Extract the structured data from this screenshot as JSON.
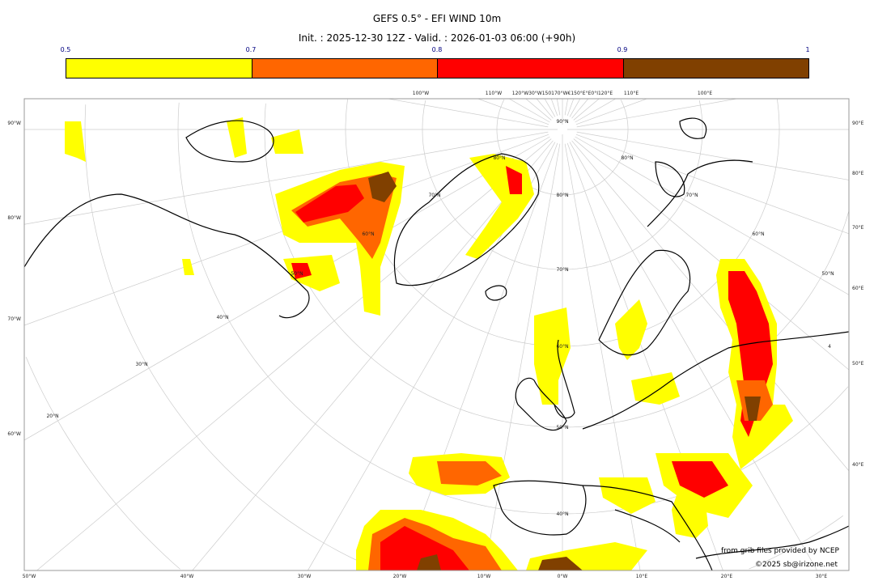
{
  "title": "GEFS 0.5° - EFI WIND 10m",
  "subtitle": "Init. : 2025-12-30 12Z - Valid. : 2026-01-03 06:00 (+90h)",
  "colorbar": {
    "ticks": [
      "0.5",
      "0.7",
      "0.8",
      "0.9",
      "1"
    ],
    "colors": [
      "#ffff00",
      "#ff6600",
      "#ff0000",
      "#804000"
    ]
  },
  "map": {
    "projection": "north-polar-stereographic",
    "bottom_labels": [
      "50°W",
      "40°W",
      "30°W",
      "20°W",
      "10°W",
      "0°W",
      "10°E",
      "20°E",
      "30°E"
    ],
    "left_labels": [
      "90°W",
      "80°W",
      "70°W",
      "60°W"
    ],
    "right_labels": [
      "90°E",
      "80°E",
      "70°E",
      "60°E",
      "50°E",
      "40°E"
    ],
    "top_labels": [
      "100°W",
      "110°W",
      "120°W30°W150170°W€150°E°E0°I120°E",
      "110°E",
      "100°E"
    ],
    "lat_labels": [
      "90°N",
      "80°N",
      "70°N",
      "60°N",
      "50°N",
      "40°N",
      "50°N",
      "40°N",
      "30°N",
      "20°N",
      "60°N",
      "70°N",
      "80°N",
      "80°N",
      "70°N",
      "60°N",
      "50°N",
      "4"
    ]
  },
  "credits": {
    "source": "from grib files provided by NCEP",
    "copyright": "©2025 sb@irizone.net"
  }
}
